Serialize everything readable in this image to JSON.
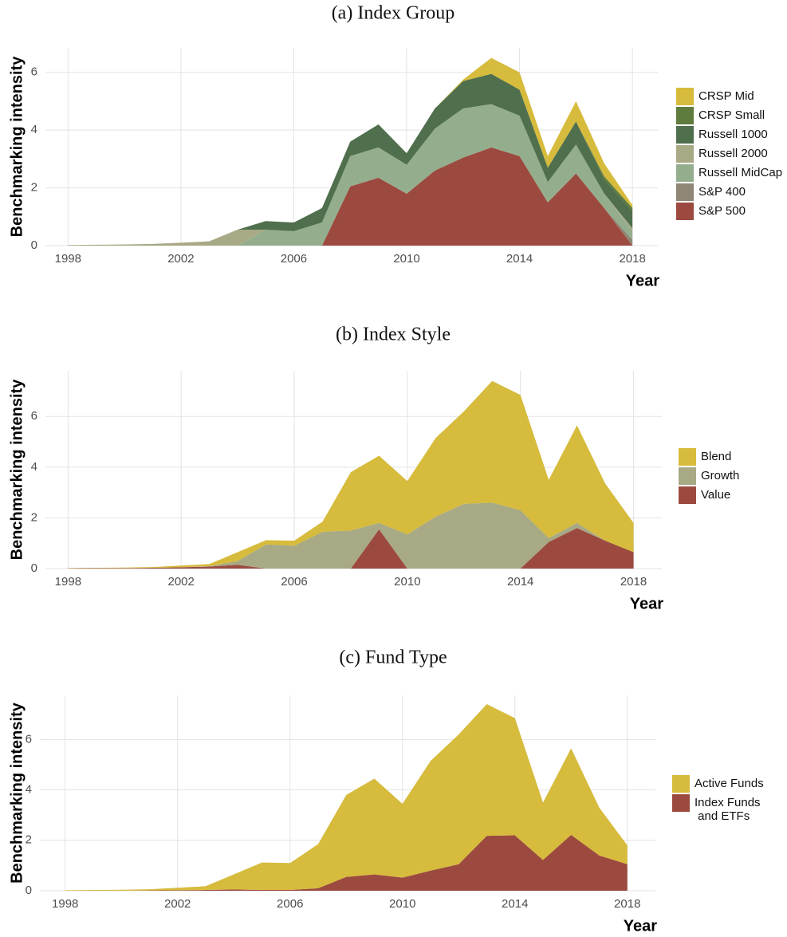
{
  "chart_data": [
    {
      "type": "area",
      "stacked": true,
      "title": "(a) Index Group",
      "xlabel": "Year",
      "ylabel": "Benchmarking intensity",
      "grid": true,
      "x": [
        1998,
        1999,
        2000,
        2001,
        2002,
        2003,
        2004,
        2005,
        2006,
        2007,
        2008,
        2009,
        2010,
        2011,
        2012,
        2013,
        2014,
        2015,
        2016,
        2017,
        2018
      ],
      "xlim": [
        1997.2,
        2018.9
      ],
      "xticks": [
        1998,
        2002,
        2006,
        2010,
        2014,
        2018
      ],
      "ylim": [
        0,
        6.85
      ],
      "yticks": [
        0,
        2,
        4,
        6
      ],
      "series": [
        {
          "name": "CRSP Mid",
          "color": "#d6bb3c",
          "values": [
            0,
            0,
            0,
            0,
            0,
            0,
            0,
            0,
            0,
            0,
            0,
            0,
            0,
            0,
            0.05,
            0.55,
            0.6,
            0.4,
            0.7,
            0.45,
            0.1
          ]
        },
        {
          "name": "CRSP Small",
          "color": "#5f7b3d",
          "values": [
            0,
            0,
            0,
            0,
            0,
            0,
            0,
            0,
            0,
            0,
            0,
            0,
            0,
            0,
            0,
            0,
            0,
            0,
            0,
            0.1,
            0.1
          ]
        },
        {
          "name": "Russell 1000",
          "color": "#506f4d",
          "values": [
            0,
            0,
            0,
            0,
            0,
            0,
            0,
            0.3,
            0.3,
            0.5,
            0.5,
            0.8,
            0.4,
            0.7,
            0.95,
            1.05,
            0.9,
            0.5,
            0.8,
            0.5,
            0.6
          ]
        },
        {
          "name": "Russell 2000",
          "color": "#a8a985",
          "values": [
            0.02,
            0.03,
            0.04,
            0.06,
            0.1,
            0.15,
            0.55,
            0,
            0,
            0,
            0,
            0,
            0,
            0,
            0,
            0,
            0,
            0,
            0,
            0,
            0.1
          ]
        },
        {
          "name": "Russell MidCap",
          "color": "#94ae8d",
          "values": [
            0,
            0,
            0,
            0,
            0,
            0,
            0,
            0.55,
            0.5,
            0.8,
            1.05,
            1.05,
            1.0,
            1.45,
            1.7,
            1.5,
            1.4,
            0.7,
            1.0,
            0.5,
            0.3
          ]
        },
        {
          "name": "S&P 400",
          "color": "#8f8775",
          "values": [
            0,
            0,
            0,
            0,
            0,
            0,
            0,
            0,
            0,
            0,
            0,
            0,
            0,
            0,
            0,
            0,
            0,
            0,
            0,
            0,
            0.2
          ]
        },
        {
          "name": "S&P 500",
          "color": "#9c4a3f",
          "values": [
            0,
            0,
            0,
            0,
            0,
            0,
            0,
            0,
            0,
            0,
            2.05,
            2.35,
            1.8,
            2.6,
            3.05,
            3.4,
            3.1,
            1.5,
            2.5,
            1.3,
            0
          ]
        }
      ]
    },
    {
      "type": "area",
      "stacked": true,
      "title": "(b) Index Style",
      "xlabel": "Year",
      "ylabel": "Benchmarking intensity",
      "grid": true,
      "x": [
        1998,
        1999,
        2000,
        2001,
        2002,
        2003,
        2004,
        2005,
        2006,
        2007,
        2008,
        2009,
        2010,
        2011,
        2012,
        2013,
        2014,
        2015,
        2016,
        2017,
        2018
      ],
      "xlim": [
        1997.2,
        2019.0
      ],
      "xticks": [
        1998,
        2002,
        2006,
        2010,
        2014,
        2018
      ],
      "ylim": [
        0,
        7.8
      ],
      "yticks": [
        0,
        2,
        4,
        6
      ],
      "series": [
        {
          "name": "Blend",
          "color": "#d6bb3c",
          "values": [
            0.01,
            0.01,
            0.02,
            0.03,
            0.07,
            0.08,
            0.35,
            0.17,
            0.2,
            0.4,
            2.3,
            2.65,
            2.1,
            3.1,
            3.65,
            4.8,
            4.55,
            2.3,
            3.85,
            2.25,
            1.15
          ]
        },
        {
          "name": "Growth",
          "color": "#a8a985",
          "values": [
            0,
            0,
            0,
            0,
            0,
            0.02,
            0.15,
            0.95,
            0.9,
            1.45,
            1.5,
            0.25,
            1.35,
            2.05,
            2.55,
            2.6,
            2.3,
            0.15,
            0.2,
            0,
            0
          ]
        },
        {
          "name": "Value",
          "color": "#9c4a3f",
          "values": [
            0.01,
            0.02,
            0.02,
            0.03,
            0.05,
            0.08,
            0.15,
            0,
            0,
            0,
            0,
            1.55,
            0,
            0,
            0,
            0,
            0,
            1.05,
            1.6,
            1.1,
            0.65
          ]
        }
      ]
    },
    {
      "type": "area",
      "stacked": true,
      "title": "(c) Fund Type",
      "xlabel": "Year",
      "ylabel": "Benchmarking intensity",
      "grid": true,
      "x": [
        1998,
        1999,
        2000,
        2001,
        2002,
        2003,
        2004,
        2005,
        2006,
        2007,
        2008,
        2009,
        2010,
        2011,
        2012,
        2013,
        2014,
        2015,
        2016,
        2017,
        2018
      ],
      "xlim": [
        1997.1,
        2019.0
      ],
      "xticks": [
        1998,
        2002,
        2006,
        2010,
        2014,
        2018
      ],
      "ylim": [
        0,
        7.75
      ],
      "yticks": [
        0,
        2,
        4,
        6
      ],
      "series": [
        {
          "name": "Active Funds",
          "color": "#d6bb3c",
          "values": [
            0.02,
            0.03,
            0.04,
            0.05,
            0.1,
            0.15,
            0.6,
            1.09,
            1.07,
            1.75,
            3.25,
            3.8,
            2.93,
            4.35,
            5.15,
            5.22,
            4.65,
            2.28,
            3.43,
            1.9,
            0.75
          ]
        },
        {
          "name": "Index Funds\n and ETFs",
          "color": "#9c4a3f",
          "values": [
            0,
            0,
            0,
            0.01,
            0.02,
            0.03,
            0.05,
            0.03,
            0.03,
            0.1,
            0.55,
            0.65,
            0.52,
            0.8,
            1.05,
            2.18,
            2.2,
            1.22,
            2.22,
            1.4,
            1.05
          ]
        }
      ]
    }
  ]
}
